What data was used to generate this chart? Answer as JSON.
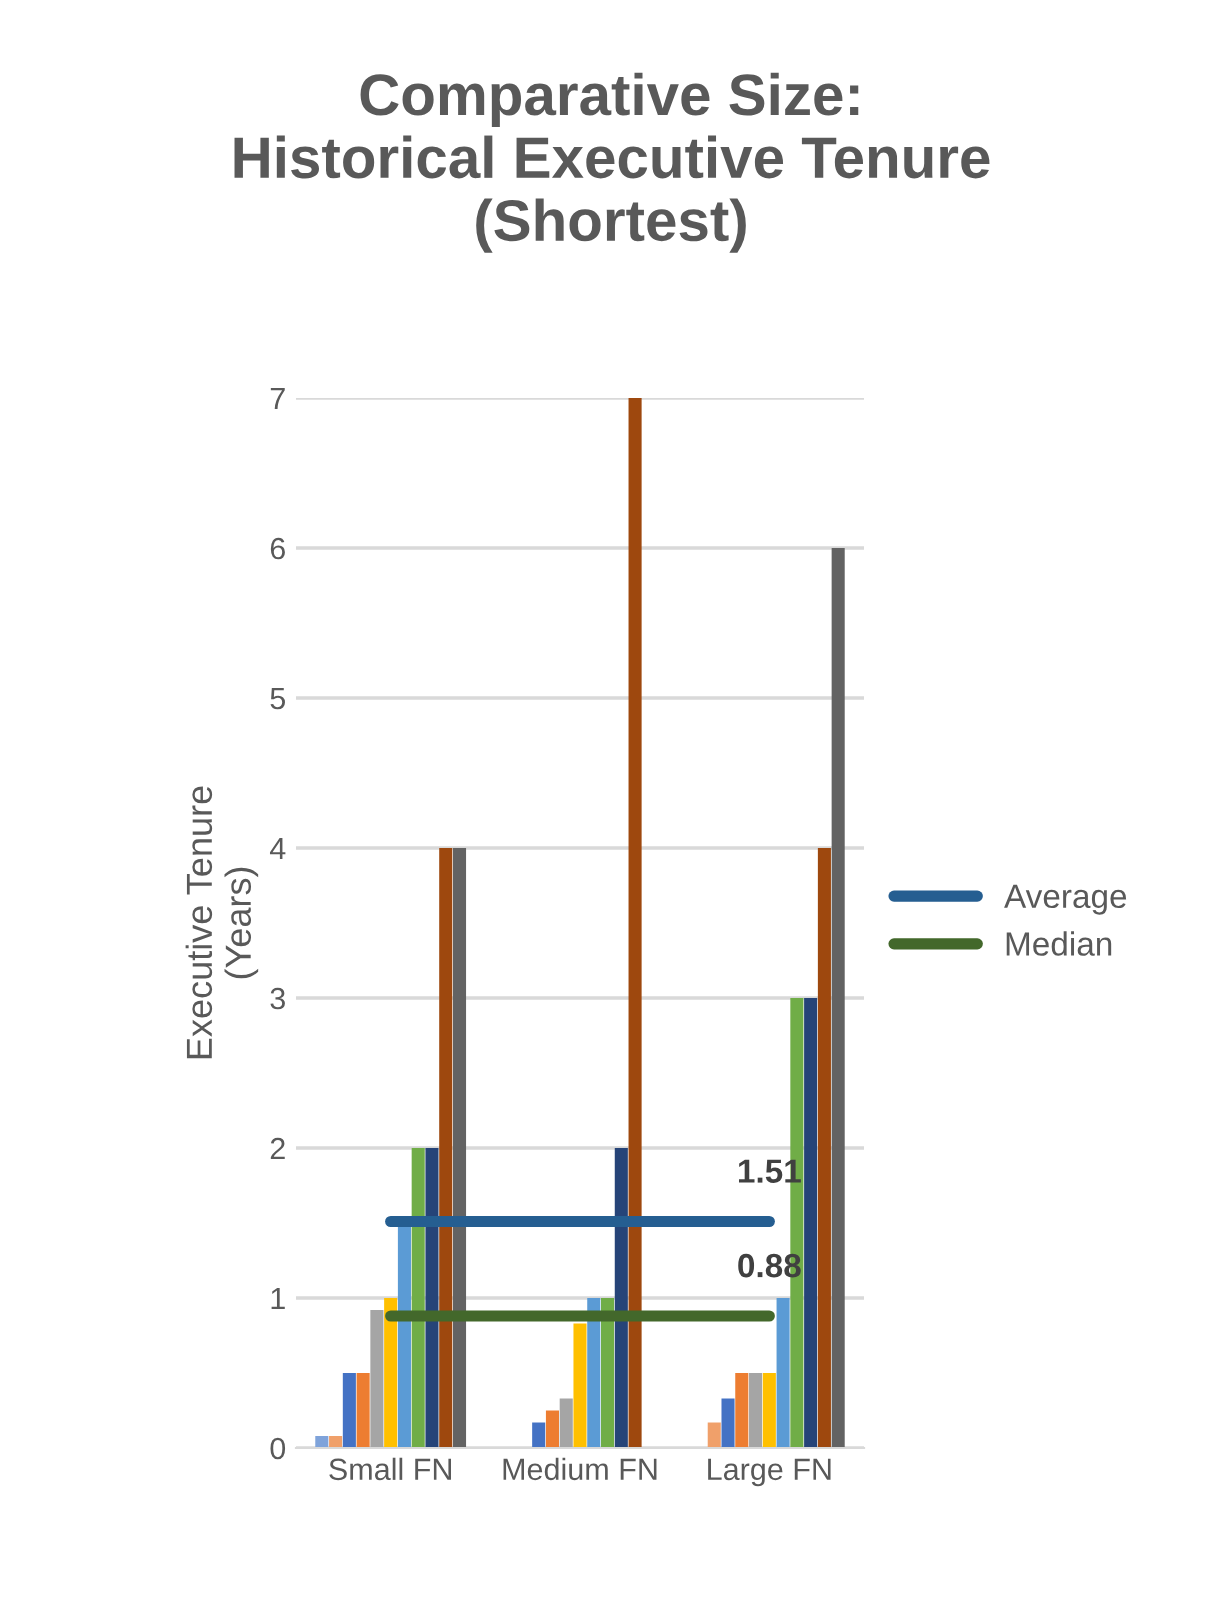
{
  "chart_data": {
    "type": "bar",
    "title": "Comparative Size:\nHistorical Executive Tenure\n(Shortest)",
    "ylabel": "Executive Tenure\n(Years)",
    "categories": [
      "Small FN",
      "Medium FN",
      "Large FN"
    ],
    "series": [
      {
        "color": "#7fa3da",
        "values": [
          0.08,
          0,
          0
        ]
      },
      {
        "color": "#f0a06a",
        "values": [
          0.08,
          0,
          0.17
        ]
      },
      {
        "color": "#4472c4",
        "values": [
          0.5,
          0.17,
          0.33
        ]
      },
      {
        "color": "#ed7d31",
        "values": [
          0.5,
          0.25,
          0.5
        ]
      },
      {
        "color": "#a5a5a5",
        "values": [
          0.92,
          0.33,
          0.5
        ]
      },
      {
        "color": "#ffc000",
        "values": [
          1.0,
          0.83,
          0.5
        ]
      },
      {
        "color": "#5b9bd5",
        "values": [
          1.5,
          1.0,
          1.0
        ]
      },
      {
        "color": "#70ad47",
        "values": [
          2,
          1.0,
          3
        ]
      },
      {
        "color": "#264478",
        "values": [
          2,
          2,
          3
        ]
      },
      {
        "color": "#9e480e",
        "values": [
          4,
          7,
          4
        ]
      },
      {
        "color": "#636363",
        "values": [
          4,
          0,
          6
        ]
      },
      {
        "type": "line",
        "name": "Average",
        "color": "#255e91",
        "values": [
          1.51,
          1.51,
          1.51
        ],
        "value_labels": [
          null,
          null,
          "1.51"
        ]
      },
      {
        "type": "line",
        "name": "Median",
        "color": "#43682b",
        "values": [
          0.88,
          0.88,
          0.88
        ],
        "value_labels": [
          null,
          null,
          "0.88"
        ]
      }
    ],
    "ylim": [
      0,
      7
    ],
    "yticks": [
      0,
      1,
      2,
      3,
      4,
      5,
      6,
      7
    ],
    "grid": "y",
    "legend": "right"
  }
}
